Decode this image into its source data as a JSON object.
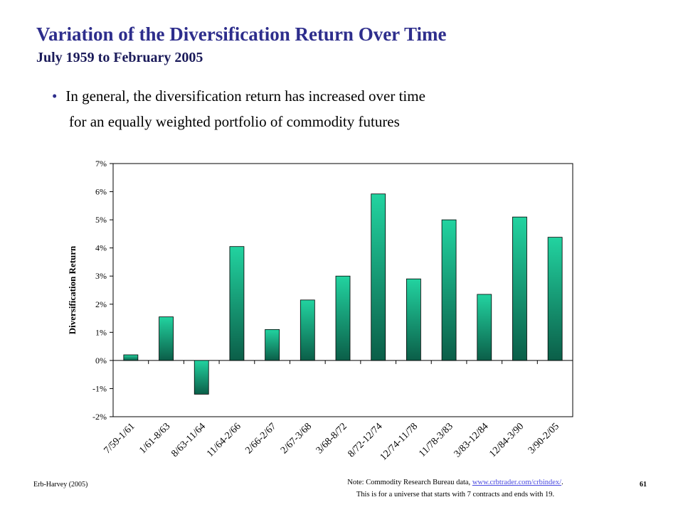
{
  "slide": {
    "title": "Variation of the Diversification Return Over Time",
    "subtitle": "July 1959 to February 2005",
    "bullet_line1": "In general, the diversification return has increased over time",
    "bullet_line2": "for an equally weighted portfolio of commodity futures"
  },
  "footer": {
    "author": "Erb-Harvey (2005)",
    "page": "61",
    "note_prefix": "Note: Commodity Research Bureau data,",
    "note_link": "www.crbtrader.com/crbindex/",
    "note_suffix": ".",
    "note_line2": "This is for a universe that starts with 7 contracts and ends with 19."
  },
  "colors": {
    "title": "#2e2e8c",
    "bar_top": "#22d3a0",
    "bar_bottom": "#0b5e48"
  },
  "chart_data": {
    "type": "bar",
    "categories": [
      "7/59-1/61",
      "1/61-8/63",
      "8/63-11/64",
      "11/64-2/66",
      "2/66-2/67",
      "2/67-3/68",
      "3/68-8/72",
      "8/72-12/74",
      "12/74-11/78",
      "11/78-3/83",
      "3/83-12/84",
      "12/84-3/90",
      "3/90-2/05"
    ],
    "values": [
      0.2,
      1.55,
      -1.2,
      4.05,
      1.1,
      2.15,
      3.0,
      5.92,
      2.9,
      5.0,
      2.35,
      5.1,
      4.38
    ],
    "ylabel": "Diversification Return",
    "ylim": [
      -2,
      7
    ],
    "yticks": [
      "-2%",
      "-1%",
      "0%",
      "1%",
      "2%",
      "3%",
      "4%",
      "5%",
      "6%",
      "7%"
    ],
    "grid": false,
    "legend": "none"
  }
}
